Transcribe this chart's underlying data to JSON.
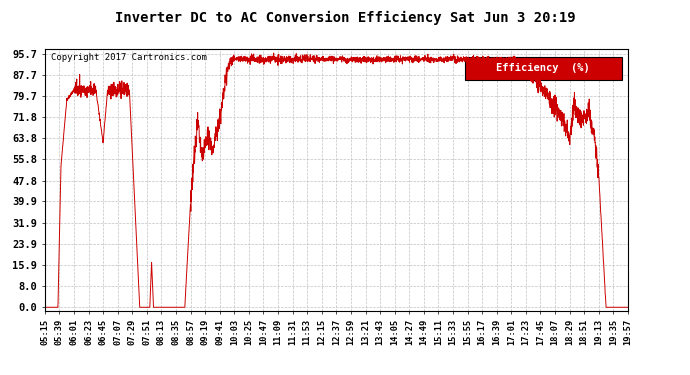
{
  "title": "Inverter DC to AC Conversion Efficiency Sat Jun 3 20:19",
  "copyright": "Copyright 2017 Cartronics.com",
  "legend_label": "Efficiency  (%)",
  "legend_bg": "#cc0000",
  "line_color": "#cc0000",
  "bg_color": "#ffffff",
  "plot_bg": "#ffffff",
  "grid_color": "#bbbbbb",
  "yticks": [
    0.0,
    8.0,
    15.9,
    23.9,
    31.9,
    39.9,
    47.8,
    55.8,
    63.8,
    71.8,
    79.7,
    87.7,
    95.7
  ],
  "xtick_labels": [
    "05:15",
    "05:39",
    "06:01",
    "06:23",
    "06:45",
    "07:07",
    "07:29",
    "07:51",
    "08:13",
    "08:35",
    "08:57",
    "09:19",
    "09:41",
    "10:03",
    "10:25",
    "10:47",
    "11:09",
    "11:31",
    "11:53",
    "12:15",
    "12:37",
    "12:59",
    "13:21",
    "13:43",
    "14:05",
    "14:27",
    "14:49",
    "15:11",
    "15:33",
    "15:55",
    "16:17",
    "16:39",
    "17:01",
    "17:23",
    "17:45",
    "18:07",
    "18:29",
    "18:51",
    "19:13",
    "19:35",
    "19:57"
  ],
  "ymin": -1.5,
  "ymax": 97.5
}
